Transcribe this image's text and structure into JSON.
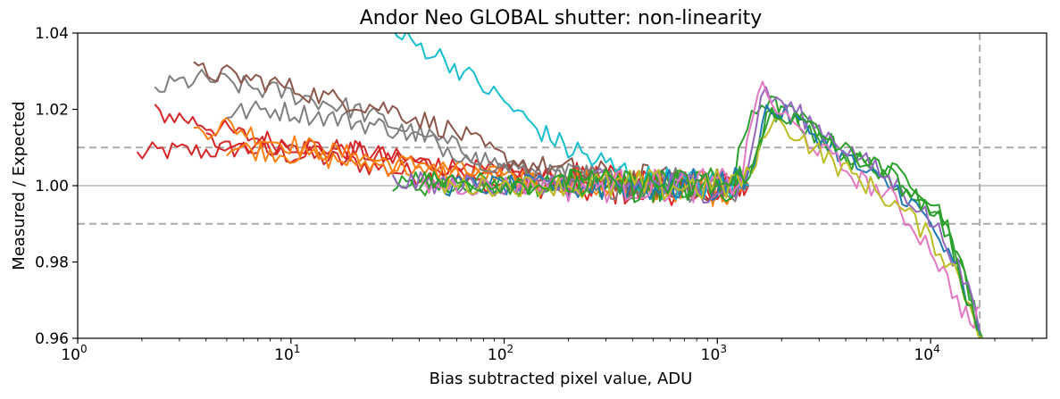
{
  "chart_data": {
    "type": "line",
    "title": "Andor Neo GLOBAL shutter: non-linearity",
    "xlabel": "Bias subtracted pixel value, ADU",
    "ylabel": "Measured / Expected",
    "x_scale": "log",
    "xlim": [
      1,
      35000
    ],
    "ylim": [
      0.96,
      1.04
    ],
    "x_ticks": [
      {
        "value": 1,
        "base": "10",
        "exp": "0"
      },
      {
        "value": 10,
        "base": "10",
        "exp": "1"
      },
      {
        "value": 100,
        "base": "10",
        "exp": "2"
      },
      {
        "value": 1000,
        "base": "10",
        "exp": "3"
      },
      {
        "value": 10000,
        "base": "10",
        "exp": "4"
      }
    ],
    "y_ticks": [
      "0.96",
      "0.98",
      "1.00",
      "1.02",
      "1.04"
    ],
    "reference_lines": {
      "horizontal_solid": [
        1.0
      ],
      "horizontal_dashed": [
        0.99,
        1.01
      ],
      "vertical_dashed": [
        17000
      ]
    },
    "grid": false,
    "legend": "none",
    "series": [
      {
        "color": "#d62728",
        "points": [
          [
            1.9,
            1.008
          ],
          [
            2.5,
            1.009
          ],
          [
            4,
            1.009
          ],
          [
            6,
            1.01
          ],
          [
            10,
            1.008
          ],
          [
            15,
            1.007
          ],
          [
            20,
            1.006
          ],
          [
            30,
            1.004
          ],
          [
            50,
            1.002
          ],
          [
            100,
            1.0
          ],
          [
            200,
            0.999
          ],
          [
            500,
            0.999
          ],
          [
            1000,
            1.0
          ],
          [
            1400,
            1.0
          ]
        ]
      },
      {
        "color": "#d62728",
        "points": [
          [
            2.3,
            1.019
          ],
          [
            3,
            1.018
          ],
          [
            4,
            1.016
          ],
          [
            6,
            1.013
          ],
          [
            10,
            1.011
          ],
          [
            20,
            1.009
          ],
          [
            30,
            1.007
          ],
          [
            60,
            1.005
          ],
          [
            100,
            1.003
          ],
          [
            200,
            1.001
          ],
          [
            500,
            1.0
          ],
          [
            1000,
            1.0
          ],
          [
            1400,
            1.0
          ]
        ]
      },
      {
        "color": "#d62728",
        "points": [
          [
            4,
            1.012
          ],
          [
            6,
            1.011
          ],
          [
            10,
            1.01
          ],
          [
            20,
            1.009
          ],
          [
            40,
            1.006
          ],
          [
            100,
            1.003
          ],
          [
            300,
            1.001
          ],
          [
            1000,
            1.0
          ],
          [
            1400,
            1.0
          ]
        ]
      },
      {
        "color": "#ff7f0e",
        "points": [
          [
            3.5,
            1.014
          ],
          [
            5,
            1.016
          ],
          [
            8,
            1.012
          ],
          [
            15,
            1.009
          ],
          [
            30,
            1.006
          ],
          [
            60,
            1.004
          ],
          [
            100,
            1.002
          ],
          [
            300,
            1.0
          ],
          [
            1000,
            1.0
          ],
          [
            1300,
            0.999
          ]
        ]
      },
      {
        "color": "#ff7f0e",
        "points": [
          [
            5,
            1.01
          ],
          [
            8,
            1.009
          ],
          [
            15,
            1.007
          ],
          [
            30,
            1.005
          ],
          [
            60,
            1.003
          ],
          [
            150,
            1.001
          ],
          [
            500,
            1.0
          ],
          [
            1000,
            0.999
          ],
          [
            1300,
            1.0
          ]
        ]
      },
      {
        "color": "#7f7f7f",
        "points": [
          [
            2.3,
            1.025
          ],
          [
            3,
            1.027
          ],
          [
            4,
            1.028
          ],
          [
            6,
            1.026
          ],
          [
            10,
            1.024
          ],
          [
            20,
            1.02
          ],
          [
            30,
            1.016
          ],
          [
            60,
            1.01
          ],
          [
            100,
            1.005
          ],
          [
            200,
            1.002
          ],
          [
            500,
            1.0
          ],
          [
            1000,
            1.0
          ],
          [
            1400,
            1.0
          ]
        ]
      },
      {
        "color": "#7f7f7f",
        "points": [
          [
            5,
            1.019
          ],
          [
            8,
            1.02
          ],
          [
            15,
            1.018
          ],
          [
            30,
            1.015
          ],
          [
            60,
            1.009
          ],
          [
            100,
            1.005
          ],
          [
            300,
            1.001
          ],
          [
            1000,
            1.0
          ],
          [
            1400,
            1.0
          ]
        ]
      },
      {
        "color": "#8c564b",
        "points": [
          [
            3.5,
            1.03
          ],
          [
            5,
            1.029
          ],
          [
            8,
            1.027
          ],
          [
            15,
            1.023
          ],
          [
            30,
            1.02
          ],
          [
            60,
            1.014
          ],
          [
            100,
            1.007
          ],
          [
            300,
            1.002
          ],
          [
            1000,
            1.0
          ],
          [
            1400,
            1.0
          ]
        ]
      },
      {
        "color": "#17becf",
        "points": [
          [
            25,
            1.045
          ],
          [
            30,
            1.04
          ],
          [
            50,
            1.034
          ],
          [
            80,
            1.026
          ],
          [
            100,
            1.022
          ],
          [
            150,
            1.014
          ],
          [
            200,
            1.01
          ],
          [
            300,
            1.005
          ],
          [
            500,
            1.001
          ],
          [
            1000,
            1.0
          ],
          [
            1400,
            1.0
          ]
        ]
      },
      {
        "color": "#2ca02c",
        "points": [
          [
            30,
            1.002
          ],
          [
            60,
            1.001
          ],
          [
            150,
            1.0
          ],
          [
            400,
            1.0
          ],
          [
            800,
            1.0
          ],
          [
            1200,
            1.001
          ],
          [
            1450,
            1.02
          ],
          [
            1700,
            1.022
          ],
          [
            2500,
            1.017
          ],
          [
            4000,
            1.008
          ],
          [
            6000,
            1.004
          ],
          [
            8000,
            1.002
          ],
          [
            10000,
            0.997
          ],
          [
            12000,
            0.99
          ],
          [
            14000,
            0.978
          ],
          [
            17000,
            0.963
          ]
        ]
      },
      {
        "color": "#2ca02c",
        "points": [
          [
            30,
            1.0
          ],
          [
            100,
            1.0
          ],
          [
            500,
            1.0
          ],
          [
            1100,
            1.0
          ],
          [
            1400,
            1.004
          ],
          [
            1700,
            1.018
          ],
          [
            2200,
            1.019
          ],
          [
            3000,
            1.013
          ],
          [
            4500,
            1.006
          ],
          [
            7000,
            1.001
          ],
          [
            9000,
            0.997
          ],
          [
            11000,
            0.992
          ],
          [
            13000,
            0.982
          ],
          [
            16000,
            0.968
          ],
          [
            17500,
            0.96
          ]
        ]
      },
      {
        "color": "#1f77b4",
        "points": [
          [
            50,
            1.0
          ],
          [
            200,
            1.0
          ],
          [
            1000,
            1.0
          ],
          [
            1400,
            1.002
          ],
          [
            1700,
            1.02
          ],
          [
            2200,
            1.018
          ],
          [
            3500,
            1.01
          ],
          [
            5000,
            1.003
          ],
          [
            7000,
            0.999
          ],
          [
            9000,
            0.993
          ],
          [
            11000,
            0.986
          ],
          [
            14000,
            0.974
          ],
          [
            17000,
            0.96
          ]
        ]
      },
      {
        "color": "#9467bd",
        "points": [
          [
            30,
            1.001
          ],
          [
            100,
            1.0
          ],
          [
            500,
            1.0
          ],
          [
            1000,
            1.0
          ],
          [
            1350,
            1.0
          ],
          [
            1600,
            1.024
          ],
          [
            2000,
            1.022
          ],
          [
            3000,
            1.015
          ],
          [
            5000,
            1.006
          ],
          [
            7000,
            1.0
          ],
          [
            9000,
            0.994
          ],
          [
            12000,
            0.985
          ],
          [
            15000,
            0.972
          ],
          [
            17000,
            0.962
          ]
        ]
      },
      {
        "color": "#e377c2",
        "points": [
          [
            40,
            1.0
          ],
          [
            200,
            1.0
          ],
          [
            1000,
            1.0
          ],
          [
            1300,
            1.002
          ],
          [
            1550,
            1.026
          ],
          [
            1900,
            1.02
          ],
          [
            2800,
            1.011
          ],
          [
            4500,
            1.002
          ],
          [
            6500,
            0.997
          ],
          [
            8000,
            0.99
          ],
          [
            10000,
            0.984
          ],
          [
            12000,
            0.975
          ],
          [
            14000,
            0.968
          ],
          [
            16000,
            0.963
          ],
          [
            17000,
            0.968
          ]
        ]
      },
      {
        "color": "#bcbd22",
        "points": [
          [
            50,
            1.0
          ],
          [
            300,
            1.0
          ],
          [
            1100,
            1.0
          ],
          [
            1450,
            1.003
          ],
          [
            1750,
            1.017
          ],
          [
            2300,
            1.014
          ],
          [
            3500,
            1.006
          ],
          [
            5500,
            0.999
          ],
          [
            8000,
            0.992
          ],
          [
            10000,
            0.986
          ],
          [
            13000,
            0.978
          ],
          [
            16000,
            0.966
          ],
          [
            17500,
            0.96
          ]
        ]
      },
      {
        "color": "#2ca02c",
        "points": [
          [
            40,
            1.001
          ],
          [
            300,
            1.0
          ],
          [
            1200,
            1.0
          ],
          [
            1500,
            1.006
          ],
          [
            1800,
            1.02
          ],
          [
            2600,
            1.016
          ],
          [
            4000,
            1.009
          ],
          [
            6000,
            1.004
          ],
          [
            9000,
            0.996
          ],
          [
            12000,
            0.988
          ],
          [
            14000,
            0.976
          ],
          [
            16500,
            0.962
          ]
        ]
      }
    ]
  }
}
